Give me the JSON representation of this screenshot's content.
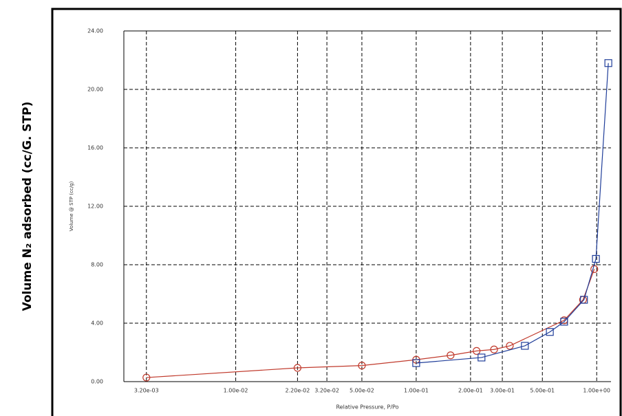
{
  "chart_data": {
    "type": "line",
    "outer_y_label": "Volume N₂ adsorbed (cc/G. STP)",
    "y_label": "Volume @ STP (cc/g)",
    "x_label": "Relative Pressure, P/Po",
    "xscale": "log",
    "xlim": [
      0.0024,
      1.2
    ],
    "xticks": [
      {
        "value": 0.0032,
        "label": "3.20e-03"
      },
      {
        "value": 0.01,
        "label": "1.00e-02"
      },
      {
        "value": 0.022,
        "label": "2.20e-02"
      },
      {
        "value": 0.032,
        "label": "3.20e-02"
      },
      {
        "value": 0.05,
        "label": "5.00e-02"
      },
      {
        "value": 0.1,
        "label": "1.00e-01"
      },
      {
        "value": 0.2,
        "label": "2.00e-01"
      },
      {
        "value": 0.3,
        "label": "3.00e-01"
      },
      {
        "value": 0.5,
        "label": "5.00e-01"
      },
      {
        "value": 1,
        "label": "1.00e+00"
      }
    ],
    "ylim": [
      0,
      24
    ],
    "yticks": [
      {
        "value": 0,
        "label": "0.00"
      },
      {
        "value": 4,
        "label": "4.00"
      },
      {
        "value": 8,
        "label": "8.00"
      },
      {
        "value": 12,
        "label": "12.00"
      },
      {
        "value": 16,
        "label": "16.00"
      },
      {
        "value": 20,
        "label": "20.00"
      },
      {
        "value": 24,
        "label": "24.00"
      }
    ],
    "grid": true,
    "series": [
      {
        "color": "#c0392b",
        "marker": "circle",
        "x": [
          0.0032,
          0.022,
          0.05,
          0.1,
          0.155,
          0.216,
          0.27,
          0.33,
          0.66,
          0.84,
          0.97
        ],
        "values": [
          0.28,
          0.94,
          1.1,
          1.5,
          1.8,
          2.1,
          2.2,
          2.45,
          4.2,
          5.6,
          7.7
        ]
      },
      {
        "color": "#1f3d99",
        "marker": "square",
        "x": [
          0.1,
          0.23,
          0.4,
          0.55,
          0.66,
          0.85,
          0.99,
          1.16
        ],
        "values": [
          1.27,
          1.65,
          2.45,
          3.4,
          4.1,
          5.6,
          8.4,
          21.8
        ]
      }
    ]
  }
}
